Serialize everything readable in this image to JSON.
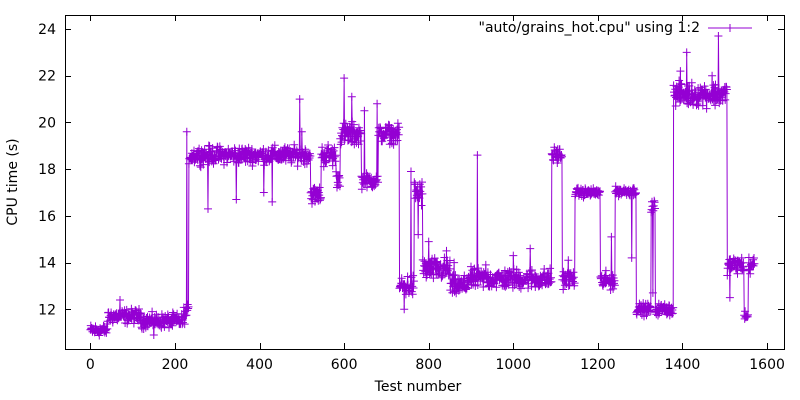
{
  "chart_data": {
    "type": "line",
    "title": "",
    "xlabel": "Test number",
    "ylabel": "CPU time (s)",
    "xlim": [
      -60,
      1640
    ],
    "ylim": [
      10.3,
      24.6
    ],
    "xticks": [
      0,
      200,
      400,
      600,
      800,
      1000,
      1200,
      1400,
      1600
    ],
    "yticks": [
      12,
      14,
      16,
      18,
      20,
      22,
      24
    ],
    "grid": false,
    "legend": {
      "placement": "top-right"
    },
    "series": [
      {
        "name": "\"auto/grains_hot.cpu\" using 1:2",
        "color": "#9400d3",
        "marker": "plus",
        "segments": [
          {
            "from": 0,
            "to": 40,
            "level": 11.1,
            "noise": 0.2
          },
          {
            "from": 41,
            "to": 120,
            "level": 11.7,
            "noise": 0.25
          },
          {
            "from": 121,
            "to": 220,
            "level": 11.5,
            "noise": 0.25
          },
          {
            "from": 221,
            "to": 232,
            "level": 11.8,
            "noise": 0.3
          },
          {
            "from": 233,
            "to": 520,
            "level": 18.6,
            "noise": 0.3
          },
          {
            "from": 521,
            "to": 545,
            "level": 16.9,
            "noise": 0.3
          },
          {
            "from": 546,
            "to": 580,
            "level": 18.6,
            "noise": 0.4
          },
          {
            "from": 581,
            "to": 590,
            "level": 17.6,
            "noise": 0.3
          },
          {
            "from": 591,
            "to": 640,
            "level": 19.5,
            "noise": 0.4
          },
          {
            "from": 641,
            "to": 680,
            "level": 17.5,
            "noise": 0.25
          },
          {
            "from": 681,
            "to": 730,
            "level": 19.5,
            "noise": 0.3
          },
          {
            "from": 731,
            "to": 765,
            "level": 13.0,
            "noise": 0.4
          },
          {
            "from": 766,
            "to": 785,
            "level": 17.0,
            "noise": 0.5
          },
          {
            "from": 786,
            "to": 850,
            "level": 13.7,
            "noise": 0.4
          },
          {
            "from": 851,
            "to": 890,
            "level": 13.0,
            "noise": 0.35
          },
          {
            "from": 891,
            "to": 1000,
            "level": 13.3,
            "noise": 0.35
          },
          {
            "from": 1001,
            "to": 1090,
            "level": 13.3,
            "noise": 0.35
          },
          {
            "from": 1091,
            "to": 1115,
            "level": 18.6,
            "noise": 0.3
          },
          {
            "from": 1116,
            "to": 1145,
            "level": 13.3,
            "noise": 0.3
          },
          {
            "from": 1146,
            "to": 1205,
            "level": 17.0,
            "noise": 0.15
          },
          {
            "from": 1206,
            "to": 1240,
            "level": 13.2,
            "noise": 0.3
          },
          {
            "from": 1241,
            "to": 1290,
            "level": 17.05,
            "noise": 0.15
          },
          {
            "from": 1291,
            "to": 1325,
            "level": 12.0,
            "noise": 0.2
          },
          {
            "from": 1326,
            "to": 1335,
            "level": 16.3,
            "noise": 0.3
          },
          {
            "from": 1336,
            "to": 1378,
            "level": 12.0,
            "noise": 0.2
          },
          {
            "from": 1379,
            "to": 1505,
            "level": 21.2,
            "noise": 0.4
          },
          {
            "from": 1506,
            "to": 1545,
            "level": 13.9,
            "noise": 0.3
          },
          {
            "from": 1546,
            "to": 1555,
            "level": 11.7,
            "noise": 0.2
          },
          {
            "from": 1556,
            "to": 1570,
            "level": 13.9,
            "noise": 0.3
          }
        ],
        "spikes": [
          {
            "x": 70,
            "y": 12.4
          },
          {
            "x": 150,
            "y": 10.9
          },
          {
            "x": 228,
            "y": 19.6
          },
          {
            "x": 278,
            "y": 16.3
          },
          {
            "x": 345,
            "y": 16.7
          },
          {
            "x": 410,
            "y": 17.0
          },
          {
            "x": 430,
            "y": 16.6
          },
          {
            "x": 495,
            "y": 21.0
          },
          {
            "x": 500,
            "y": 19.6
          },
          {
            "x": 600,
            "y": 21.9
          },
          {
            "x": 618,
            "y": 21.1
          },
          {
            "x": 648,
            "y": 20.5
          },
          {
            "x": 678,
            "y": 20.8
          },
          {
            "x": 705,
            "y": 19.9
          },
          {
            "x": 742,
            "y": 12.0
          },
          {
            "x": 758,
            "y": 17.9
          },
          {
            "x": 775,
            "y": 15.2
          },
          {
            "x": 800,
            "y": 14.9
          },
          {
            "x": 842,
            "y": 14.5
          },
          {
            "x": 860,
            "y": 14.0
          },
          {
            "x": 915,
            "y": 18.6
          },
          {
            "x": 935,
            "y": 13.9
          },
          {
            "x": 1000,
            "y": 14.3
          },
          {
            "x": 1040,
            "y": 14.6
          },
          {
            "x": 1130,
            "y": 14.1
          },
          {
            "x": 1232,
            "y": 15.1
          },
          {
            "x": 1280,
            "y": 14.2
          },
          {
            "x": 1330,
            "y": 12.7
          },
          {
            "x": 1395,
            "y": 22.2
          },
          {
            "x": 1410,
            "y": 23.0
          },
          {
            "x": 1470,
            "y": 22.0
          },
          {
            "x": 1485,
            "y": 23.7
          },
          {
            "x": 1512,
            "y": 12.5
          }
        ]
      }
    ]
  }
}
